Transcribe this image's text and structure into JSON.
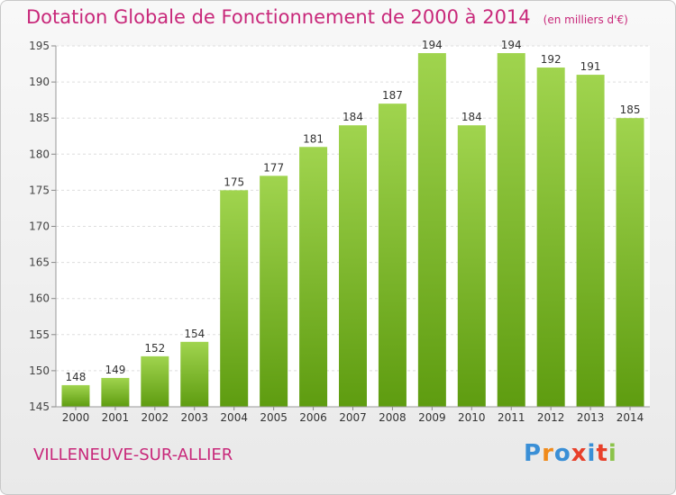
{
  "title": "Dotation Globale de Fonctionnement de 2000 à 2014",
  "unit_note": "(en milliers d'€)",
  "town": "VILLENEUVE-SUR-ALLIER",
  "logo": {
    "letters": [
      "P",
      "r",
      "o",
      "x",
      "i",
      "t",
      "i"
    ],
    "colors": [
      "#3a8fd6",
      "#f08a1a",
      "#3a8fd6",
      "#e8402a",
      "#3a8fd6",
      "#e8402a",
      "#8bc34a"
    ]
  },
  "colors": {
    "accent": "#c8287a",
    "bar_top": "#a0d44e",
    "bar_bottom": "#5e9c10"
  },
  "chart_data": {
    "type": "bar",
    "categories": [
      "2000",
      "2001",
      "2002",
      "2003",
      "2004",
      "2005",
      "2006",
      "2007",
      "2008",
      "2009",
      "2010",
      "2011",
      "2012",
      "2013",
      "2014"
    ],
    "values": [
      148,
      149,
      152,
      154,
      175,
      177,
      181,
      184,
      187,
      194,
      184,
      194,
      192,
      191,
      185
    ],
    "ylim": [
      145,
      195
    ],
    "yticks": [
      145,
      150,
      155,
      160,
      165,
      170,
      175,
      180,
      185,
      190,
      195
    ],
    "grid": true
  }
}
